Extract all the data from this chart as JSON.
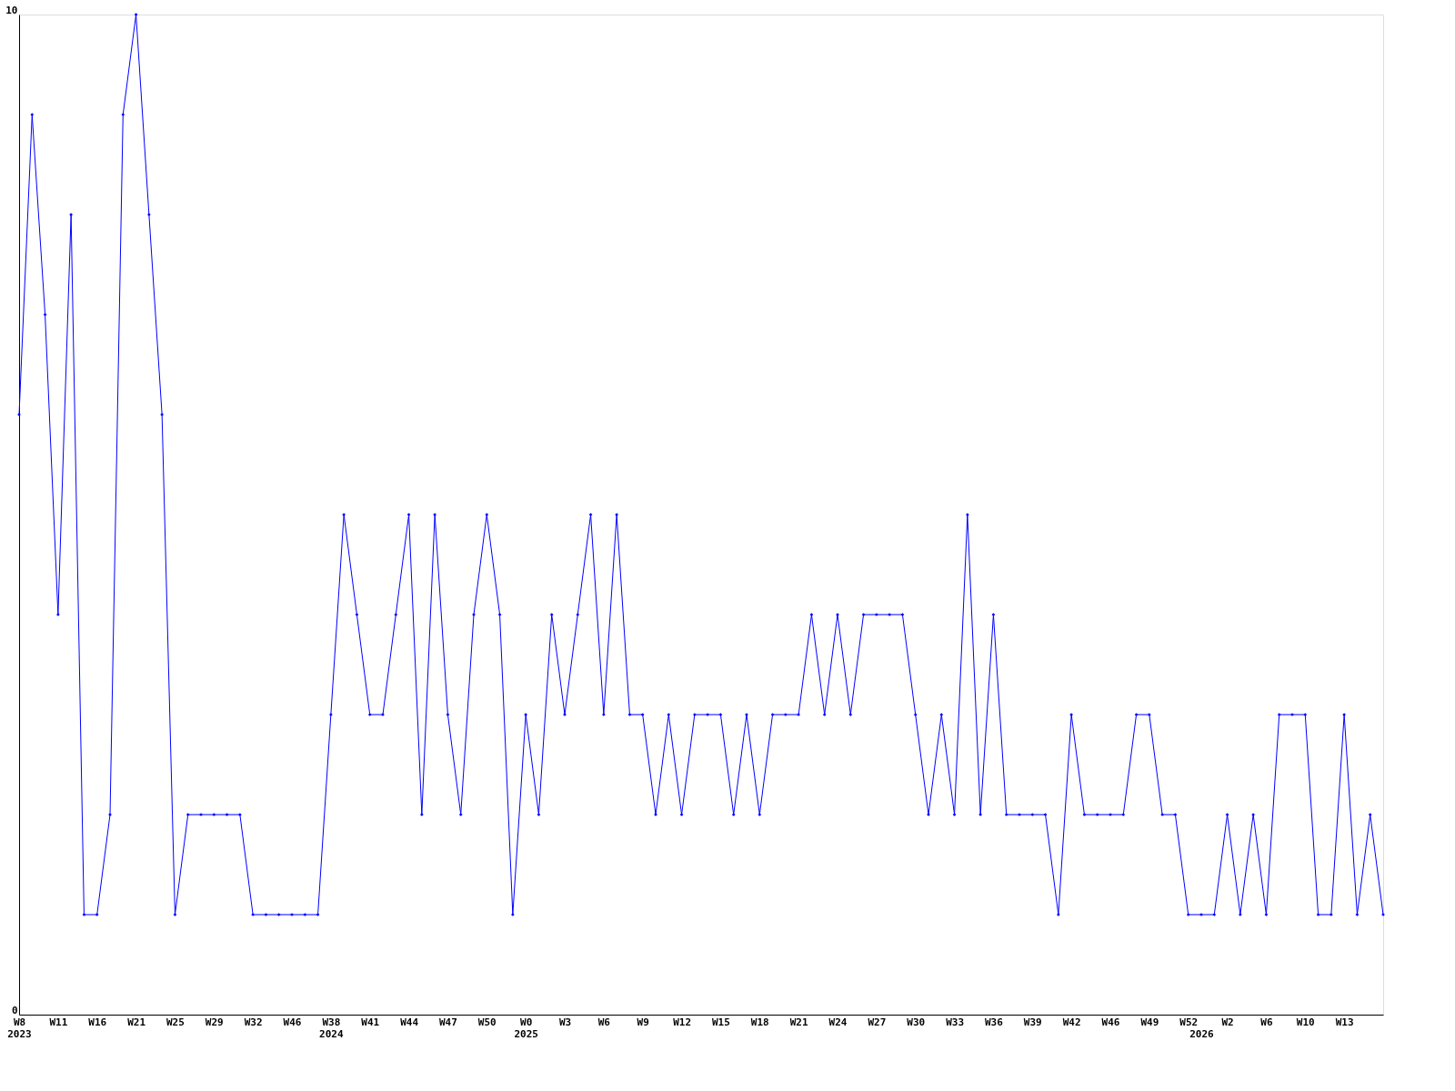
{
  "chart_data": {
    "type": "line",
    "marker": "diamond",
    "grid": false,
    "categories": [
      "W8\n2023",
      null,
      null,
      "W11",
      null,
      null,
      "W16",
      null,
      null,
      "W21",
      null,
      null,
      "W25",
      null,
      null,
      "W29",
      null,
      null,
      "W32",
      null,
      null,
      "W46",
      null,
      null,
      "W38\n2024",
      null,
      null,
      "W41",
      null,
      null,
      "W44",
      null,
      null,
      "W47",
      null,
      null,
      "W50",
      null,
      null,
      "W0\n2025",
      null,
      null,
      "W3",
      null,
      null,
      "W6",
      null,
      null,
      "W9",
      null,
      null,
      "W12",
      null,
      null,
      "W15",
      null,
      null,
      "W18",
      null,
      null,
      "W21",
      null,
      null,
      "W24",
      null,
      null,
      "W27",
      null,
      null,
      "W30",
      null,
      null,
      "W33",
      null,
      null,
      "W36",
      null,
      null,
      "W39",
      null,
      null,
      "W42",
      null,
      null,
      "W46",
      null,
      null,
      "W49",
      null,
      null,
      "W52",
      "\n2026",
      null,
      "W2",
      null,
      null,
      "W6",
      null,
      null,
      "W10",
      null,
      null,
      "W13",
      null,
      null,
      null
    ],
    "series": [
      {
        "color": "#0000ff",
        "values": [
          6,
          9,
          7,
          4,
          8,
          1,
          1,
          2,
          9,
          10,
          8,
          6,
          1,
          2,
          2,
          2,
          2,
          2,
          1,
          1,
          1,
          1,
          1,
          1,
          3,
          5,
          4,
          3,
          3,
          4,
          5,
          2,
          5,
          3,
          2,
          4,
          5,
          4,
          1,
          3,
          2,
          4,
          3,
          4,
          5,
          3,
          5,
          3,
          3,
          2,
          3,
          2,
          3,
          3,
          3,
          2,
          3,
          2,
          3,
          3,
          3,
          4,
          3,
          4,
          3,
          4,
          4,
          4,
          4,
          3,
          2,
          3,
          2,
          5,
          2,
          4,
          2,
          2,
          2,
          2,
          1,
          3,
          2,
          2,
          2,
          2,
          3,
          3,
          2,
          2,
          1,
          1,
          1,
          2,
          1,
          2,
          1,
          3,
          3,
          3,
          1,
          1,
          3,
          1,
          2,
          1
        ]
      }
    ],
    "ylim": [
      0,
      10
    ],
    "yticks": [
      0,
      10
    ]
  }
}
